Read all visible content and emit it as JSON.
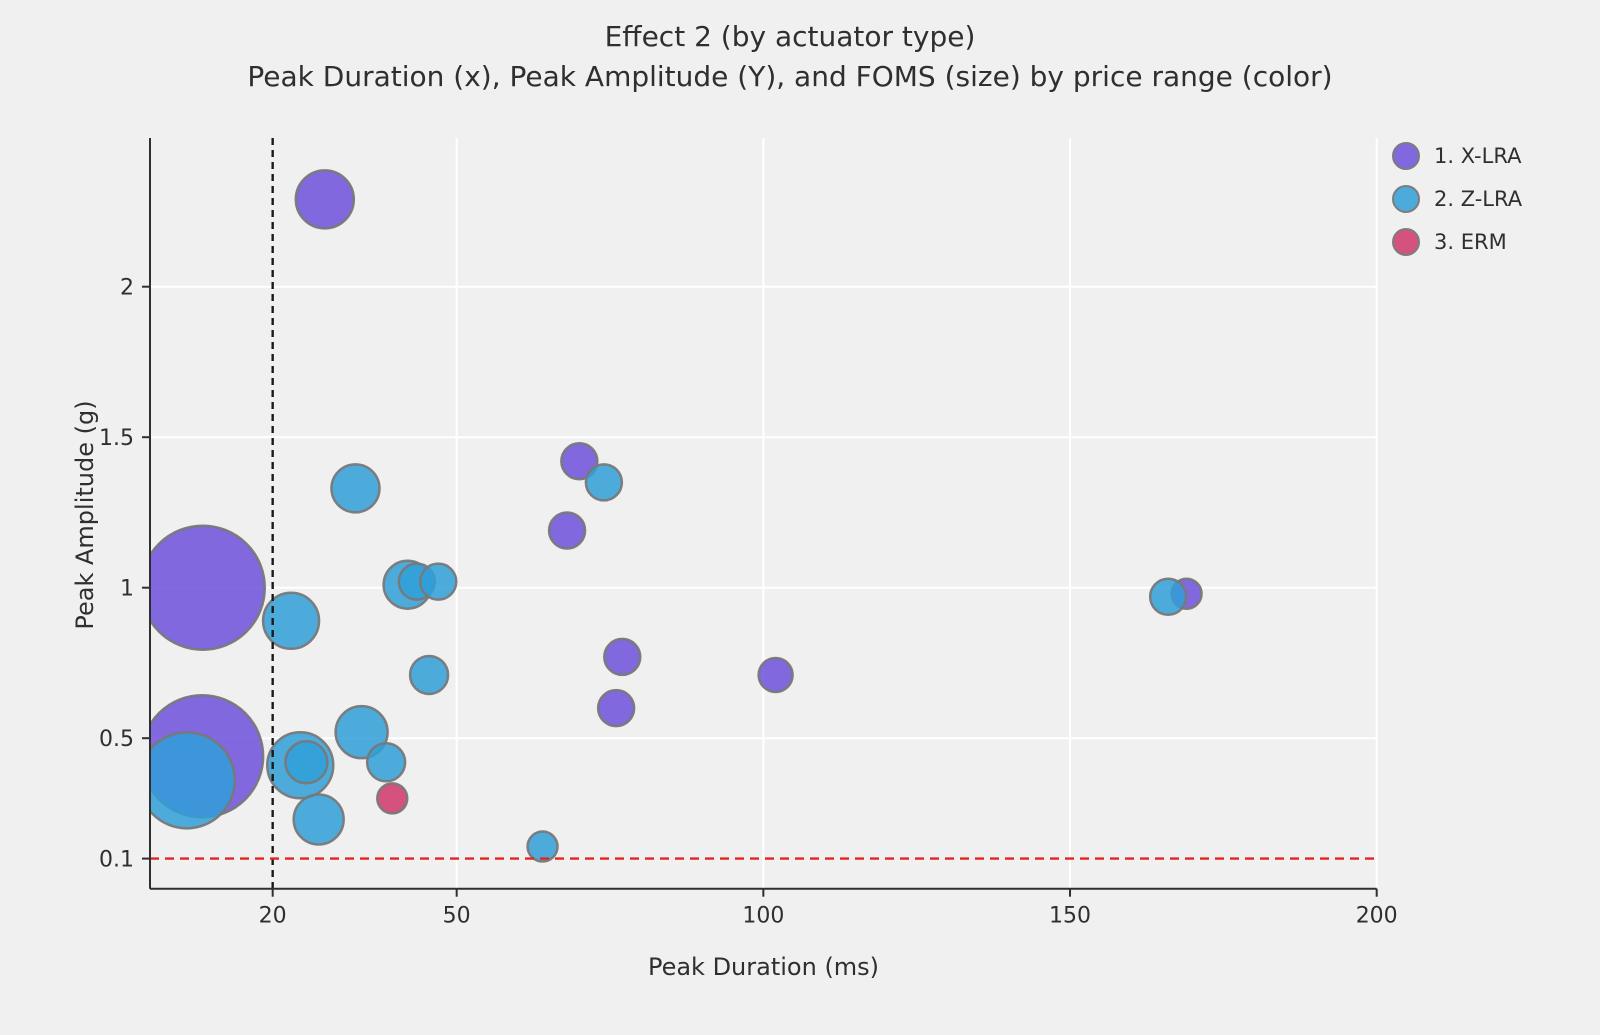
{
  "title": {
    "line1": "Effect 2 (by actuator type)",
    "line2": "Peak Duration (x), Peak Amplitude (Y), and FOMS (size) by price range (color)"
  },
  "colors": {
    "background": "#f0f0f0",
    "gridline": "#ffffff",
    "axis": "#2f2f2f",
    "text": "#2f2f2f",
    "bubble_stroke": "#787878",
    "vline": "#1a1a1a",
    "hline": "#e52222"
  },
  "legend": {
    "items": [
      {
        "label": "1. X-LRA",
        "color": "#6D50DC"
      },
      {
        "label": "2. Z-LRA",
        "color": "#309FD8"
      },
      {
        "label": "3. ERM",
        "color": "#D1366A"
      }
    ]
  },
  "chart_data": {
    "type": "scatter",
    "subtype": "bubble",
    "title": "Effect 2 (by actuator type)",
    "subtitle": "Peak Duration (x), Peak Amplitude (Y), and FOMS (size) by price range (color)",
    "xlabel": "Peak Duration (ms)",
    "ylabel": "Peak Amplitude (g)",
    "xlim": [
      0,
      200
    ],
    "ylim": [
      0,
      2.494
    ],
    "grid": true,
    "legend_position": "top-right",
    "x_ticks": [
      {
        "v": 20,
        "label": "20"
      },
      {
        "v": 50,
        "label": "50"
      },
      {
        "v": 100,
        "label": "100"
      },
      {
        "v": 150,
        "label": "150"
      },
      {
        "v": 200,
        "label": "200"
      }
    ],
    "y_ticks": [
      {
        "v": 0.1,
        "label": "0.1"
      },
      {
        "v": 0.5,
        "label": "0.5"
      },
      {
        "v": 1,
        "label": "1"
      },
      {
        "v": 1.5,
        "label": "1.5"
      },
      {
        "v": 2,
        "label": "2"
      }
    ],
    "x_gridlines": [
      50,
      100,
      150,
      200
    ],
    "y_gridlines": [
      0.5,
      1,
      1.5,
      2
    ],
    "reference_lines": {
      "vertical_x": 20,
      "horizontal_y": 0.1
    },
    "size_encoding": "FOMS (bubble radius in px, value not labeled on chart)",
    "series": [
      {
        "name": "1. X-LRA",
        "color": "#6D50DC",
        "points": [
          {
            "x": 8.6,
            "y": 1.0,
            "r": 62
          },
          {
            "x": 8.5,
            "y": 0.44,
            "r": 61
          },
          {
            "x": 28.5,
            "y": 2.29,
            "r": 29
          },
          {
            "x": 68,
            "y": 1.19,
            "r": 18
          },
          {
            "x": 70,
            "y": 1.42,
            "r": 18
          },
          {
            "x": 76,
            "y": 0.6,
            "r": 18
          },
          {
            "x": 77,
            "y": 0.77,
            "r": 18
          },
          {
            "x": 102,
            "y": 0.71,
            "r": 17
          },
          {
            "x": 169,
            "y": 0.98,
            "r": 15
          }
        ]
      },
      {
        "name": "2. Z-LRA",
        "color": "#309FD8",
        "points": [
          {
            "x": 6,
            "y": 0.36,
            "r": 48
          },
          {
            "x": 23,
            "y": 0.89,
            "r": 28
          },
          {
            "x": 24.5,
            "y": 0.41,
            "r": 33
          },
          {
            "x": 25.5,
            "y": 0.42,
            "r": 21
          },
          {
            "x": 27.5,
            "y": 0.23,
            "r": 25
          },
          {
            "x": 33.5,
            "y": 1.33,
            "r": 24
          },
          {
            "x": 34.5,
            "y": 0.52,
            "r": 26
          },
          {
            "x": 38.5,
            "y": 0.42,
            "r": 19
          },
          {
            "x": 42,
            "y": 1.01,
            "r": 24
          },
          {
            "x": 43.5,
            "y": 1.02,
            "r": 18
          },
          {
            "x": 47,
            "y": 1.02,
            "r": 18
          },
          {
            "x": 45.5,
            "y": 0.71,
            "r": 19
          },
          {
            "x": 64,
            "y": 0.14,
            "r": 15
          },
          {
            "x": 74,
            "y": 1.35,
            "r": 18
          },
          {
            "x": 166,
            "y": 0.97,
            "r": 18
          }
        ]
      },
      {
        "name": "3. ERM",
        "color": "#D1366A",
        "points": [
          {
            "x": 39.5,
            "y": 0.3,
            "r": 15
          }
        ]
      }
    ]
  }
}
